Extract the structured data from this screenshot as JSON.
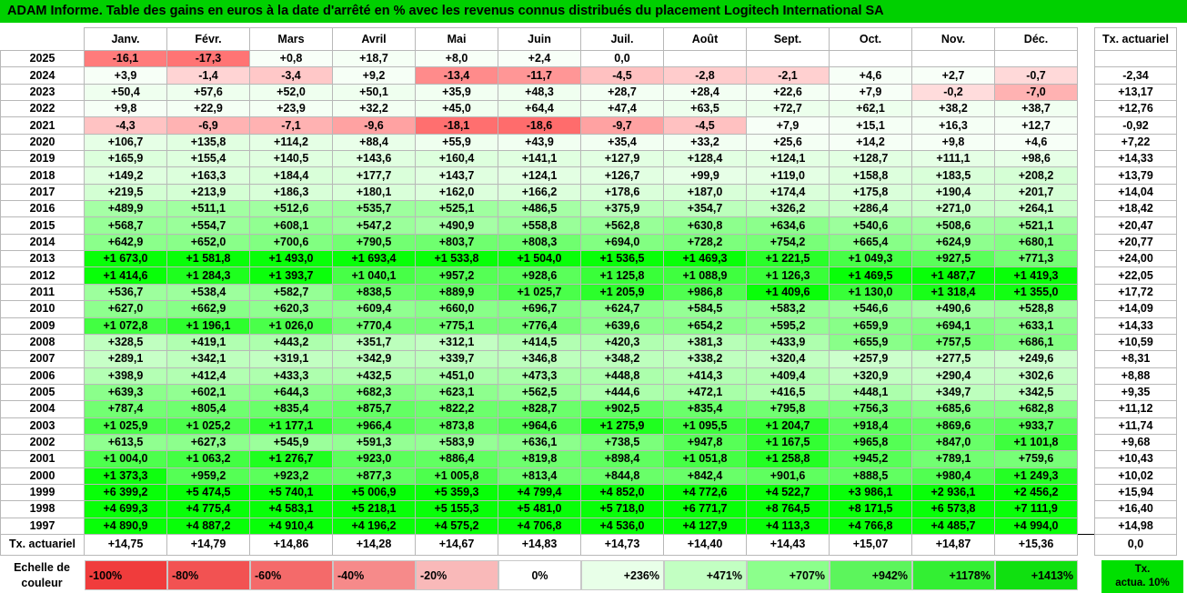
{
  "title": "ADAM Informe. Table des gains en euros à la date d'arrêté en % avec les revenus connus distribués du placement Logitech International SA",
  "months": [
    "Janv.",
    "Févr.",
    "Mars",
    "Avril",
    "Mai",
    "Juin",
    "Juil.",
    "Août",
    "Sept.",
    "Oct.",
    "Nov.",
    "Déc."
  ],
  "tx_header": "Tx. actuariel",
  "rows": [
    {
      "year": "2025",
      "vals": [
        "-16,1",
        "-17,3",
        "+0,8",
        "+18,7",
        "+8,0",
        "+2,4",
        "0,0",
        "",
        "",
        "",
        "",
        ""
      ],
      "tx": ""
    },
    {
      "year": "2024",
      "vals": [
        "+3,9",
        "-1,4",
        "-3,4",
        "+9,2",
        "-13,4",
        "-11,7",
        "-4,5",
        "-2,8",
        "-2,1",
        "+4,6",
        "+2,7",
        "-0,7"
      ],
      "tx": "-2,34"
    },
    {
      "year": "2023",
      "vals": [
        "+50,4",
        "+57,6",
        "+52,0",
        "+50,1",
        "+35,9",
        "+48,3",
        "+28,7",
        "+28,4",
        "+22,6",
        "+7,9",
        "-0,2",
        "-7,0"
      ],
      "tx": "+13,17"
    },
    {
      "year": "2022",
      "vals": [
        "+9,8",
        "+22,9",
        "+23,9",
        "+32,2",
        "+45,0",
        "+64,4",
        "+47,4",
        "+63,5",
        "+72,7",
        "+62,1",
        "+38,2",
        "+38,7"
      ],
      "tx": "+12,76"
    },
    {
      "year": "2021",
      "vals": [
        "-4,3",
        "-6,9",
        "-7,1",
        "-9,6",
        "-18,1",
        "-18,6",
        "-9,7",
        "-4,5",
        "+7,9",
        "+15,1",
        "+16,3",
        "+12,7"
      ],
      "tx": "-0,92"
    },
    {
      "year": "2020",
      "vals": [
        "+106,7",
        "+135,8",
        "+114,2",
        "+88,4",
        "+55,9",
        "+43,9",
        "+35,4",
        "+33,2",
        "+25,6",
        "+14,2",
        "+9,8",
        "+4,6"
      ],
      "tx": "+7,22"
    },
    {
      "year": "2019",
      "vals": [
        "+165,9",
        "+155,4",
        "+140,5",
        "+143,6",
        "+160,4",
        "+141,1",
        "+127,9",
        "+128,4",
        "+124,1",
        "+128,7",
        "+111,1",
        "+98,6"
      ],
      "tx": "+14,33"
    },
    {
      "year": "2018",
      "vals": [
        "+149,2",
        "+163,3",
        "+184,4",
        "+177,7",
        "+143,7",
        "+124,1",
        "+126,7",
        "+99,9",
        "+119,0",
        "+158,8",
        "+183,5",
        "+208,2"
      ],
      "tx": "+13,79"
    },
    {
      "year": "2017",
      "vals": [
        "+219,5",
        "+213,9",
        "+186,3",
        "+180,1",
        "+162,0",
        "+166,2",
        "+178,6",
        "+187,0",
        "+174,4",
        "+175,8",
        "+190,4",
        "+201,7"
      ],
      "tx": "+14,04"
    },
    {
      "year": "2016",
      "vals": [
        "+489,9",
        "+511,1",
        "+512,6",
        "+535,7",
        "+525,1",
        "+486,5",
        "+375,9",
        "+354,7",
        "+326,2",
        "+286,4",
        "+271,0",
        "+264,1"
      ],
      "tx": "+18,42"
    },
    {
      "year": "2015",
      "vals": [
        "+568,7",
        "+554,7",
        "+608,1",
        "+547,2",
        "+490,9",
        "+558,8",
        "+562,8",
        "+630,8",
        "+634,6",
        "+540,6",
        "+508,6",
        "+521,1"
      ],
      "tx": "+20,47"
    },
    {
      "year": "2014",
      "vals": [
        "+642,9",
        "+652,0",
        "+700,6",
        "+790,5",
        "+803,7",
        "+808,3",
        "+694,0",
        "+728,2",
        "+754,2",
        "+665,4",
        "+624,9",
        "+680,1"
      ],
      "tx": "+20,77"
    },
    {
      "year": "2013",
      "vals": [
        "+1 673,0",
        "+1 581,8",
        "+1 493,0",
        "+1 693,4",
        "+1 533,8",
        "+1 504,0",
        "+1 536,5",
        "+1 469,3",
        "+1 221,5",
        "+1 049,3",
        "+927,5",
        "+771,3"
      ],
      "tx": "+24,00"
    },
    {
      "year": "2012",
      "vals": [
        "+1 414,6",
        "+1 284,3",
        "+1 393,7",
        "+1 040,1",
        "+957,2",
        "+928,6",
        "+1 125,8",
        "+1 088,9",
        "+1 126,3",
        "+1 469,5",
        "+1 487,7",
        "+1 419,3"
      ],
      "tx": "+22,05"
    },
    {
      "year": "2011",
      "vals": [
        "+536,7",
        "+538,4",
        "+582,7",
        "+838,5",
        "+889,9",
        "+1 025,7",
        "+1 205,9",
        "+986,8",
        "+1 409,6",
        "+1 130,0",
        "+1 318,4",
        "+1 355,0"
      ],
      "tx": "+17,72"
    },
    {
      "year": "2010",
      "vals": [
        "+627,0",
        "+662,9",
        "+620,3",
        "+609,4",
        "+660,0",
        "+696,7",
        "+624,7",
        "+584,5",
        "+583,2",
        "+546,6",
        "+490,6",
        "+528,8"
      ],
      "tx": "+14,09"
    },
    {
      "year": "2009",
      "vals": [
        "+1 072,8",
        "+1 196,1",
        "+1 026,0",
        "+770,4",
        "+775,1",
        "+776,4",
        "+639,6",
        "+654,2",
        "+595,2",
        "+659,9",
        "+694,1",
        "+633,1"
      ],
      "tx": "+14,33"
    },
    {
      "year": "2008",
      "vals": [
        "+328,5",
        "+419,1",
        "+443,2",
        "+351,7",
        "+312,1",
        "+414,5",
        "+420,3",
        "+381,3",
        "+433,9",
        "+655,9",
        "+757,5",
        "+686,1"
      ],
      "tx": "+10,59"
    },
    {
      "year": "2007",
      "vals": [
        "+289,1",
        "+342,1",
        "+319,1",
        "+342,9",
        "+339,7",
        "+346,8",
        "+348,2",
        "+338,2",
        "+320,4",
        "+257,9",
        "+277,5",
        "+249,6"
      ],
      "tx": "+8,31"
    },
    {
      "year": "2006",
      "vals": [
        "+398,9",
        "+412,4",
        "+433,3",
        "+432,5",
        "+451,0",
        "+473,3",
        "+448,8",
        "+414,3",
        "+409,4",
        "+320,9",
        "+290,4",
        "+302,6"
      ],
      "tx": "+8,88"
    },
    {
      "year": "2005",
      "vals": [
        "+639,3",
        "+602,1",
        "+644,3",
        "+682,3",
        "+623,1",
        "+562,5",
        "+444,6",
        "+472,1",
        "+416,5",
        "+448,1",
        "+349,7",
        "+342,5"
      ],
      "tx": "+9,35"
    },
    {
      "year": "2004",
      "vals": [
        "+787,4",
        "+805,4",
        "+835,4",
        "+875,7",
        "+822,2",
        "+828,7",
        "+902,5",
        "+835,4",
        "+795,8",
        "+756,3",
        "+685,6",
        "+682,8"
      ],
      "tx": "+11,12"
    },
    {
      "year": "2003",
      "vals": [
        "+1 025,9",
        "+1 025,2",
        "+1 177,1",
        "+966,4",
        "+873,8",
        "+964,6",
        "+1 275,9",
        "+1 095,5",
        "+1 204,7",
        "+918,4",
        "+869,6",
        "+933,7"
      ],
      "tx": "+11,74"
    },
    {
      "year": "2002",
      "vals": [
        "+613,5",
        "+627,3",
        "+545,9",
        "+591,3",
        "+583,9",
        "+636,1",
        "+738,5",
        "+947,8",
        "+1 167,5",
        "+965,8",
        "+847,0",
        "+1 101,8"
      ],
      "tx": "+9,68"
    },
    {
      "year": "2001",
      "vals": [
        "+1 004,0",
        "+1 063,2",
        "+1 276,7",
        "+923,0",
        "+886,4",
        "+819,8",
        "+898,4",
        "+1 051,8",
        "+1 258,8",
        "+945,2",
        "+789,1",
        "+759,6"
      ],
      "tx": "+10,43"
    },
    {
      "year": "2000",
      "vals": [
        "+1 373,3",
        "+959,2",
        "+923,2",
        "+877,3",
        "+1 005,8",
        "+813,4",
        "+844,8",
        "+842,4",
        "+901,6",
        "+888,5",
        "+980,4",
        "+1 249,3"
      ],
      "tx": "+10,02"
    },
    {
      "year": "1999",
      "vals": [
        "+6 399,2",
        "+5 474,5",
        "+5 740,1",
        "+5 006,9",
        "+5 359,3",
        "+4 799,4",
        "+4 852,0",
        "+4 772,6",
        "+4 522,7",
        "+3 986,1",
        "+2 936,1",
        "+2 456,2"
      ],
      "tx": "+15,94"
    },
    {
      "year": "1998",
      "vals": [
        "+4 699,3",
        "+4 775,4",
        "+4 583,1",
        "+5 218,1",
        "+5 155,3",
        "+5 481,0",
        "+5 718,0",
        "+6 771,7",
        "+8 764,5",
        "+8 171,5",
        "+6 573,8",
        "+7 111,9"
      ],
      "tx": "+16,40"
    },
    {
      "year": "1997",
      "vals": [
        "+4 890,9",
        "+4 887,2",
        "+4 910,4",
        "+4 196,2",
        "+4 575,2",
        "+4 706,8",
        "+4 536,0",
        "+4 127,9",
        "+4 113,3",
        "+4 766,8",
        "+4 485,7",
        "+4 994,0"
      ],
      "tx": "+14,98"
    }
  ],
  "footer": {
    "label": "Tx. actuariel",
    "vals": [
      "+14,75",
      "+14,79",
      "+14,86",
      "+14,28",
      "+14,67",
      "+14,83",
      "+14,73",
      "+14,40",
      "+14,43",
      "+15,07",
      "+14,87",
      "+15,36"
    ],
    "tx": "0,0"
  },
  "scale": {
    "label_line1": "Echelle de",
    "label_line2": "couleur",
    "items": [
      {
        "text": "-100%",
        "color": "#f03c3c"
      },
      {
        "text": "-80%",
        "color": "#f25252"
      },
      {
        "text": "-60%",
        "color": "#f46a6a"
      },
      {
        "text": "-40%",
        "color": "#f68a8a"
      },
      {
        "text": "-20%",
        "color": "#f9b9b9"
      },
      {
        "text": "0%",
        "color": "#ffffff"
      },
      {
        "text": "+236%",
        "color": "#e8ffe8"
      },
      {
        "text": "+471%",
        "color": "#c2ffc2"
      },
      {
        "text": "+707%",
        "color": "#8cff8c"
      },
      {
        "text": "+942%",
        "color": "#5cf55c"
      },
      {
        "text": "+1178%",
        "color": "#33ef33"
      },
      {
        "text": "+1413%",
        "color": "#10e010"
      }
    ],
    "tx_line1": "Tx.",
    "tx_line2": "actua. 10%",
    "tx_color": "#00e000"
  }
}
